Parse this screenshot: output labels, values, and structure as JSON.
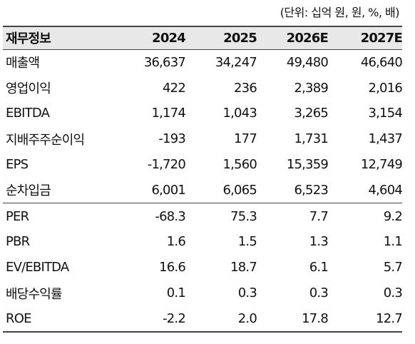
{
  "header": {
    "unit": "(단위: 십억 원, 원, %, 배)"
  },
  "table": {
    "columns": [
      "재무정보",
      "2024",
      "2025",
      "2026E",
      "2027E"
    ],
    "sections": [
      {
        "rows": [
          [
            "매출액",
            "36,637",
            "34,247",
            "49,480",
            "46,640"
          ],
          [
            "영업이익",
            "422",
            "236",
            "2,389",
            "2,016"
          ],
          [
            "EBITDA",
            "1,174",
            "1,043",
            "3,265",
            "3,154"
          ],
          [
            "지배주주순이익",
            "-193",
            "177",
            "1,731",
            "1,437"
          ],
          [
            "EPS",
            "-1,720",
            "1,560",
            "15,359",
            "12,749"
          ],
          [
            "순차입금",
            "6,001",
            "6,065",
            "6,523",
            "4,604"
          ]
        ]
      },
      {
        "rows": [
          [
            "PER",
            "-68.3",
            "75.3",
            "7.7",
            "9.2"
          ],
          [
            "PBR",
            "1.6",
            "1.5",
            "1.3",
            "1.1"
          ],
          [
            "EV/EBITDA",
            "16.6",
            "18.7",
            "6.1",
            "5.7"
          ],
          [
            "배당수익률",
            "0.1",
            "0.3",
            "0.3",
            "0.3"
          ],
          [
            "ROE",
            "-2.2",
            "2.0",
            "17.8",
            "12.7"
          ]
        ]
      }
    ]
  }
}
